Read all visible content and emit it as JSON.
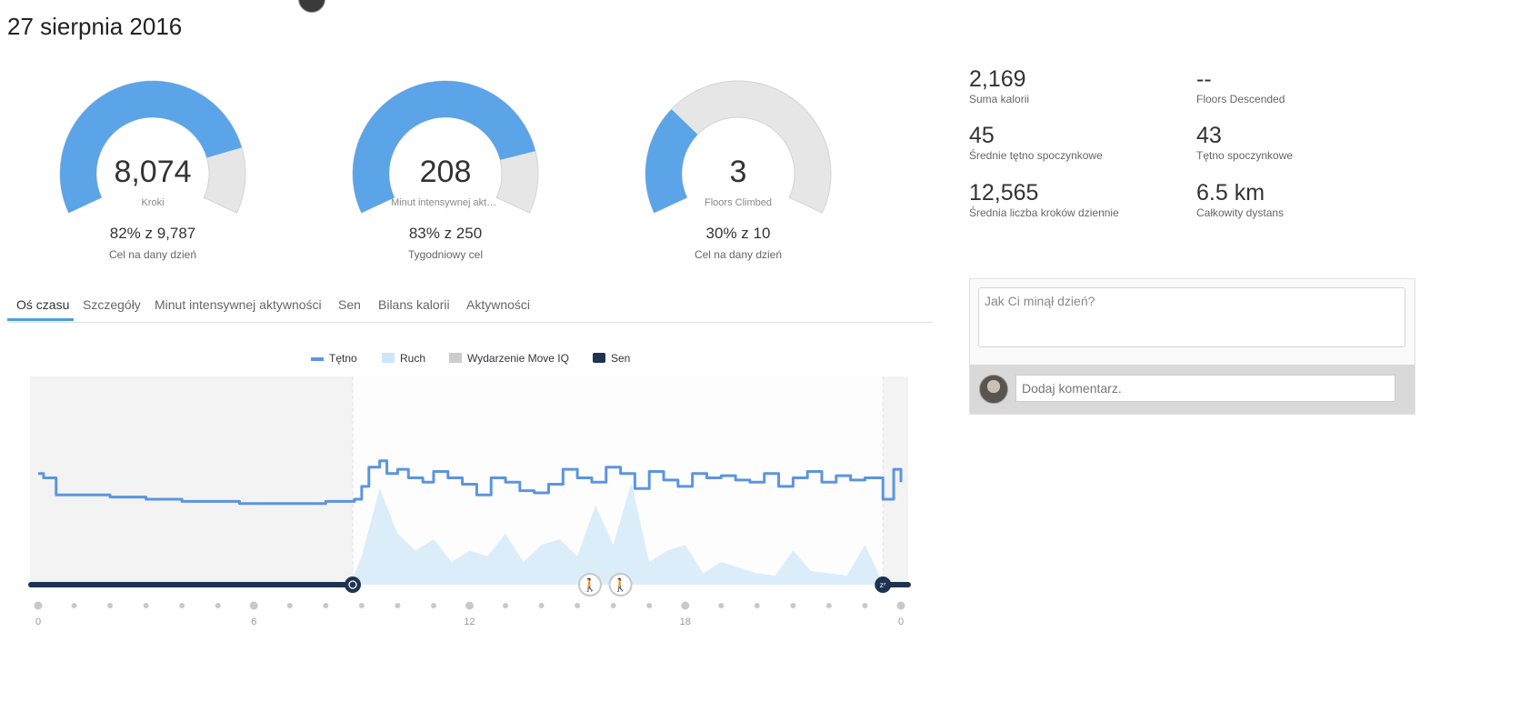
{
  "page": {
    "date": "27 sierpnia 2016"
  },
  "gauges": [
    {
      "value": "8,074",
      "label": "Kroki",
      "progress": "82% z 9,787",
      "goal": "Cel na dany dzień",
      "fraction": 0.82
    },
    {
      "value": "208",
      "label": "Minut intensywnej aktywności",
      "progress": "83% z 250",
      "goal": "Tygodniowy cel",
      "fraction": 0.83
    },
    {
      "value": "3",
      "label": "Floors Climbed",
      "progress": "30% z 10",
      "goal": "Cel na dany dzień",
      "fraction": 0.3
    }
  ],
  "stats": [
    {
      "value": "2,169",
      "label": "Suma kalorii"
    },
    {
      "value": "--",
      "label": "Floors Descended"
    },
    {
      "value": "45",
      "label": "Średnie tętno spoczynkowe"
    },
    {
      "value": "43",
      "label": "Tętno spoczynkowe"
    },
    {
      "value": "12,565",
      "label": "Średnia liczba kroków dziennie"
    },
    {
      "value": "6.5 km",
      "label": "Całkowity dystans"
    }
  ],
  "tabs": [
    "Oś czasu",
    "Szczegóły",
    "Minut intensywnej aktywności",
    "Sen",
    "Bilans kalorii",
    "Aktywności"
  ],
  "legend": [
    {
      "label": "Tętno",
      "color": "#5b95e0"
    },
    {
      "label": "Ruch",
      "color": "#cfe5f8"
    },
    {
      "label": "Wydarzenie Move IQ",
      "color": "#cccccc"
    },
    {
      "label": "Sen",
      "color": "#1e3350"
    }
  ],
  "notes": {
    "placeholder": "Jak Ci minął dzień?",
    "comment_placeholder": "Dodaj komentarz."
  },
  "colors": {
    "accent": "#5ba4e8",
    "gauge_bg": "#e6e6e6",
    "sleep": "#1e3350",
    "heart": "#5b95e0",
    "motion": "#d6eaf9"
  },
  "icons": [
    "alarm-icon",
    "walking-icon",
    "sleep-zz-icon"
  ],
  "chart_data": {
    "type": "line",
    "x_ticks": [
      "0",
      "6",
      "12",
      "18",
      "0"
    ],
    "xlim": [
      0,
      24
    ],
    "sleep_segments": [
      [
        0,
        8.75
      ],
      [
        23.5,
        24
      ]
    ],
    "move_iq_events": [
      15.35,
      16.2
    ],
    "series": [
      {
        "name": "Tętno",
        "x": [
          0,
          0.15,
          0.5,
          1,
          2,
          2.2,
          3,
          3.1,
          4,
          4.2,
          5,
          5.6,
          6,
          7,
          7.1,
          8,
          8.8,
          9,
          9.2,
          9.5,
          9.7,
          10,
          10.3,
          10.7,
          11,
          11.4,
          11.8,
          12.2,
          12.6,
          13,
          13.4,
          13.8,
          14.2,
          14.6,
          15,
          15.4,
          15.8,
          16.2,
          16.6,
          17,
          17.4,
          17.8,
          18.2,
          18.6,
          19,
          19.4,
          19.8,
          20.2,
          20.6,
          21,
          21.4,
          21.8,
          22.2,
          22.6,
          23,
          23.5,
          23.8,
          24
        ],
        "y": [
          72,
          70,
          62,
          62,
          61,
          61,
          60,
          60,
          59,
          59,
          59,
          58,
          58,
          58,
          58,
          59,
          60,
          66,
          75,
          78,
          72,
          74,
          70,
          68,
          73,
          70,
          67,
          62,
          70,
          68,
          64,
          63,
          67,
          74,
          70,
          68,
          75,
          72,
          65,
          73,
          69,
          66,
          72,
          70,
          71,
          69,
          68,
          72,
          66,
          70,
          73,
          68,
          71,
          69,
          70,
          60,
          74,
          68
        ]
      },
      {
        "name": "Ruch",
        "x": [
          0,
          8.7,
          9,
          9.5,
          10,
          10.5,
          11,
          11.5,
          12,
          12.5,
          13,
          13.5,
          14,
          14.5,
          15,
          15.5,
          16,
          16.5,
          17,
          17.5,
          18,
          18.5,
          19,
          19.5,
          20,
          20.5,
          21,
          21.5,
          22,
          22.5,
          23,
          23.5,
          24
        ],
        "y": [
          2,
          2,
          25,
          85,
          45,
          30,
          40,
          20,
          30,
          25,
          45,
          20,
          35,
          40,
          25,
          70,
          35,
          90,
          20,
          30,
          35,
          10,
          20,
          15,
          10,
          8,
          30,
          12,
          10,
          8,
          35,
          2,
          2
        ]
      }
    ]
  }
}
